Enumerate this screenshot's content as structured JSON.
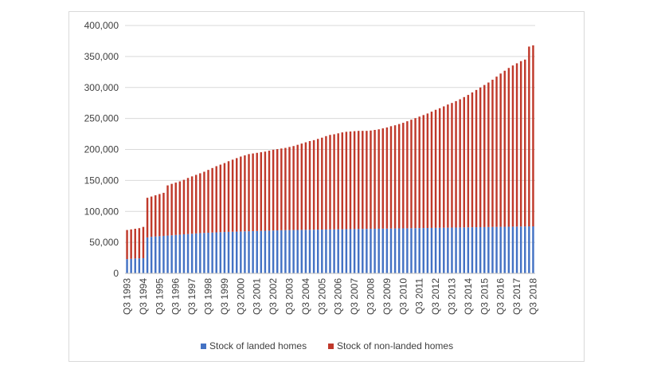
{
  "chart_data": {
    "type": "bar",
    "stacked": true,
    "x_start": "Q3 1993",
    "x_end": "Q3 2018",
    "frequency": "quarterly",
    "x_tick_labels": [
      "Q3 1993",
      "Q3 1994",
      "Q3 1995",
      "Q3 1996",
      "Q3 1997",
      "Q3 1998",
      "Q3 1999",
      "Q3 2000",
      "Q3 2001",
      "Q3 2002",
      "Q3 2003",
      "Q3 2004",
      "Q3 2005",
      "Q3 2006",
      "Q3 2007",
      "Q3 2008",
      "Q3 2009",
      "Q3 2010",
      "Q3 2011",
      "Q3 2012",
      "Q3 2013",
      "Q3 2014",
      "Q3 2015",
      "Q3 2016",
      "Q3 2017",
      "Q3 2018"
    ],
    "y_tick_labels": [
      "0",
      "50,000",
      "100,000",
      "150,000",
      "200,000",
      "250,000",
      "300,000",
      "350,000",
      "400,000"
    ],
    "ylim": [
      0,
      400000
    ],
    "grid": true,
    "legend_position": "bottom",
    "title": "",
    "xlabel": "",
    "ylabel": "",
    "series": [
      {
        "name": "Stock of landed homes",
        "color": "#4472c4",
        "values": [
          23000,
          23500,
          24000,
          24200,
          24500,
          58000,
          59000,
          59500,
          60000,
          60500,
          61000,
          61500,
          62000,
          62500,
          63000,
          63500,
          64000,
          64500,
          65000,
          65300,
          65600,
          65900,
          66200,
          66500,
          66800,
          67000,
          67200,
          67400,
          67600,
          67800,
          68000,
          68200,
          68400,
          68600,
          68800,
          69000,
          69200,
          69400,
          69600,
          69800,
          69900,
          70000,
          70100,
          70200,
          70300,
          70400,
          70500,
          70600,
          70700,
          70800,
          70900,
          71000,
          71100,
          71200,
          71300,
          71400,
          71500,
          71600,
          71700,
          71800,
          71900,
          72000,
          72100,
          72200,
          72300,
          72400,
          72500,
          72600,
          72700,
          72800,
          72900,
          73000,
          73100,
          73200,
          73300,
          73400,
          73500,
          73600,
          73700,
          73800,
          73900,
          74000,
          74100,
          74200,
          74300,
          74400,
          74500,
          74600,
          74700,
          74800,
          74900,
          75000,
          75100,
          75200,
          75300,
          75400,
          75500,
          75600,
          75700,
          75800,
          75900
        ]
      },
      {
        "name": "Stock of non-landed homes",
        "color": "#c0392b",
        "values": [
          47000,
          47500,
          48000,
          48800,
          50500,
          64000,
          65000,
          66500,
          68000,
          69500,
          81000,
          83000,
          84500,
          86000,
          88000,
          90500,
          92500,
          94500,
          96500,
          98700,
          101400,
          104100,
          106800,
          109000,
          111200,
          114000,
          116300,
          118600,
          120900,
          122700,
          124500,
          125300,
          126100,
          126900,
          127700,
          129000,
          130300,
          131100,
          131900,
          132700,
          134100,
          135500,
          137400,
          139300,
          141200,
          143100,
          144500,
          146400,
          148300,
          150700,
          152600,
          153500,
          154900,
          156300,
          157200,
          157600,
          158000,
          158400,
          158300,
          158200,
          158600,
          159500,
          160400,
          161800,
          163200,
          165100,
          166500,
          168400,
          170300,
          172700,
          175100,
          177500,
          179900,
          182300,
          184700,
          187600,
          190500,
          192900,
          195800,
          198700,
          201100,
          204000,
          206900,
          210300,
          213700,
          217600,
          221500,
          225400,
          229300,
          233200,
          237600,
          242500,
          247400,
          251800,
          256200,
          260100,
          263500,
          266900,
          269300,
          290200,
          292100
        ]
      }
    ]
  }
}
